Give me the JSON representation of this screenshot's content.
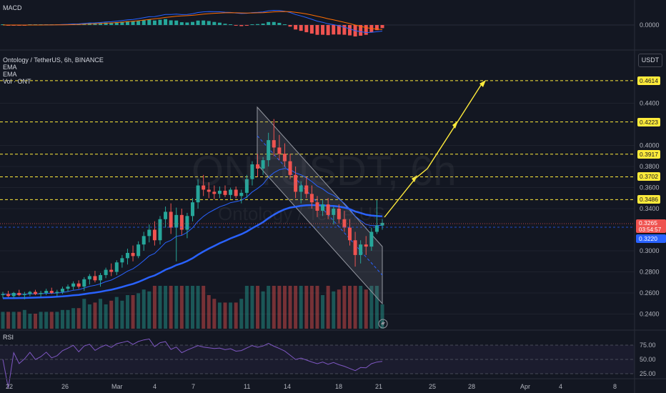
{
  "macd_pane": {
    "title": "MACD",
    "zero_label": "0.0000"
  },
  "legend": {
    "symbol_line": "Ontology / TetherUS, 6h, BINANCE",
    "ema1": "EMA",
    "ema2": "EMA",
    "volume": "Vol · ONT"
  },
  "unit_label": "USDT",
  "watermark": {
    "ticker": "ONTUSDT, 6h",
    "name": "Ontology / TetherUS"
  },
  "rsi_pane": {
    "title": "RSI",
    "levels": [
      "75.00",
      "50.00",
      "25.00"
    ]
  },
  "price_badges": {
    "last": "0.3265",
    "countdown": "03:54:57",
    "ema_value": "0.3220"
  },
  "colors": {
    "up": "#26a69a",
    "down": "#ef5350",
    "ema_fast": "#2962ff",
    "ema_slow": "#2962ff",
    "level": "#ffeb3b",
    "rsi": "#7e57c2",
    "macd": "#2962ff",
    "signal": "#ff6d00"
  },
  "chart_data": {
    "type": "candlestick",
    "symbol": "ONTUSDT",
    "interval": "6h",
    "exchange": "BINANCE",
    "y_ticks": [
      "0.4400",
      "0.4000",
      "0.3800",
      "0.3600",
      "0.3400",
      "0.3000",
      "0.2800",
      "0.2600",
      "0.2400"
    ],
    "x_ticks": [
      "22",
      "26",
      "Mar",
      "4",
      "7",
      "11",
      "14",
      "18",
      "21",
      "25",
      "28",
      "Apr",
      "4",
      "8"
    ],
    "horizontal_levels": [
      {
        "price": 0.4614,
        "label": "0.4614"
      },
      {
        "price": 0.4223,
        "label": "0.4223"
      },
      {
        "price": 0.3917,
        "label": "0.3917"
      },
      {
        "price": 0.3702,
        "label": "0.3702"
      },
      {
        "price": 0.3486,
        "label": "0.3486"
      }
    ],
    "last_price": 0.3265,
    "ema_value": 0.322,
    "candles": [
      {
        "o": 0.258,
        "h": 0.261,
        "l": 0.255,
        "c": 0.259
      },
      {
        "o": 0.259,
        "h": 0.262,
        "l": 0.256,
        "c": 0.257
      },
      {
        "o": 0.257,
        "h": 0.261,
        "l": 0.255,
        "c": 0.26
      },
      {
        "o": 0.26,
        "h": 0.263,
        "l": 0.257,
        "c": 0.258
      },
      {
        "o": 0.258,
        "h": 0.261,
        "l": 0.254,
        "c": 0.259
      },
      {
        "o": 0.259,
        "h": 0.262,
        "l": 0.257,
        "c": 0.261
      },
      {
        "o": 0.261,
        "h": 0.263,
        "l": 0.258,
        "c": 0.259
      },
      {
        "o": 0.259,
        "h": 0.262,
        "l": 0.256,
        "c": 0.26
      },
      {
        "o": 0.26,
        "h": 0.264,
        "l": 0.258,
        "c": 0.262
      },
      {
        "o": 0.262,
        "h": 0.265,
        "l": 0.259,
        "c": 0.26
      },
      {
        "o": 0.26,
        "h": 0.263,
        "l": 0.257,
        "c": 0.261
      },
      {
        "o": 0.261,
        "h": 0.266,
        "l": 0.259,
        "c": 0.264
      },
      {
        "o": 0.264,
        "h": 0.268,
        "l": 0.261,
        "c": 0.266
      },
      {
        "o": 0.266,
        "h": 0.271,
        "l": 0.263,
        "c": 0.269
      },
      {
        "o": 0.269,
        "h": 0.272,
        "l": 0.264,
        "c": 0.266
      },
      {
        "o": 0.266,
        "h": 0.275,
        "l": 0.262,
        "c": 0.273
      },
      {
        "o": 0.273,
        "h": 0.278,
        "l": 0.268,
        "c": 0.276
      },
      {
        "o": 0.276,
        "h": 0.281,
        "l": 0.27,
        "c": 0.272
      },
      {
        "o": 0.272,
        "h": 0.279,
        "l": 0.266,
        "c": 0.277
      },
      {
        "o": 0.277,
        "h": 0.284,
        "l": 0.274,
        "c": 0.282
      },
      {
        "o": 0.282,
        "h": 0.288,
        "l": 0.276,
        "c": 0.28
      },
      {
        "o": 0.28,
        "h": 0.291,
        "l": 0.277,
        "c": 0.289
      },
      {
        "o": 0.289,
        "h": 0.296,
        "l": 0.284,
        "c": 0.293
      },
      {
        "o": 0.293,
        "h": 0.302,
        "l": 0.287,
        "c": 0.298
      },
      {
        "o": 0.298,
        "h": 0.305,
        "l": 0.29,
        "c": 0.295
      },
      {
        "o": 0.295,
        "h": 0.309,
        "l": 0.293,
        "c": 0.306
      },
      {
        "o": 0.306,
        "h": 0.318,
        "l": 0.3,
        "c": 0.314
      },
      {
        "o": 0.314,
        "h": 0.325,
        "l": 0.308,
        "c": 0.32
      },
      {
        "o": 0.32,
        "h": 0.328,
        "l": 0.305,
        "c": 0.31
      },
      {
        "o": 0.31,
        "h": 0.333,
        "l": 0.306,
        "c": 0.33
      },
      {
        "o": 0.33,
        "h": 0.342,
        "l": 0.322,
        "c": 0.337
      },
      {
        "o": 0.337,
        "h": 0.345,
        "l": 0.316,
        "c": 0.322
      },
      {
        "o": 0.322,
        "h": 0.341,
        "l": 0.29,
        "c": 0.334
      },
      {
        "o": 0.334,
        "h": 0.34,
        "l": 0.315,
        "c": 0.32
      },
      {
        "o": 0.32,
        "h": 0.336,
        "l": 0.312,
        "c": 0.333
      },
      {
        "o": 0.333,
        "h": 0.35,
        "l": 0.328,
        "c": 0.346
      },
      {
        "o": 0.346,
        "h": 0.368,
        "l": 0.34,
        "c": 0.362
      },
      {
        "o": 0.362,
        "h": 0.372,
        "l": 0.352,
        "c": 0.358
      },
      {
        "o": 0.358,
        "h": 0.365,
        "l": 0.35,
        "c": 0.356
      },
      {
        "o": 0.356,
        "h": 0.362,
        "l": 0.349,
        "c": 0.354
      },
      {
        "o": 0.354,
        "h": 0.361,
        "l": 0.35,
        "c": 0.357
      },
      {
        "o": 0.357,
        "h": 0.362,
        "l": 0.351,
        "c": 0.353
      },
      {
        "o": 0.353,
        "h": 0.36,
        "l": 0.349,
        "c": 0.358
      },
      {
        "o": 0.358,
        "h": 0.361,
        "l": 0.35,
        "c": 0.352
      },
      {
        "o": 0.352,
        "h": 0.358,
        "l": 0.345,
        "c": 0.355
      },
      {
        "o": 0.355,
        "h": 0.372,
        "l": 0.35,
        "c": 0.368
      },
      {
        "o": 0.368,
        "h": 0.385,
        "l": 0.362,
        "c": 0.382
      },
      {
        "o": 0.382,
        "h": 0.392,
        "l": 0.37,
        "c": 0.378
      },
      {
        "o": 0.378,
        "h": 0.389,
        "l": 0.372,
        "c": 0.386
      },
      {
        "o": 0.386,
        "h": 0.412,
        "l": 0.38,
        "c": 0.405
      },
      {
        "o": 0.405,
        "h": 0.425,
        "l": 0.39,
        "c": 0.398
      },
      {
        "o": 0.398,
        "h": 0.41,
        "l": 0.386,
        "c": 0.392
      },
      {
        "o": 0.392,
        "h": 0.402,
        "l": 0.38,
        "c": 0.385
      },
      {
        "o": 0.385,
        "h": 0.392,
        "l": 0.368,
        "c": 0.372
      },
      {
        "o": 0.372,
        "h": 0.38,
        "l": 0.35,
        "c": 0.356
      },
      {
        "o": 0.356,
        "h": 0.366,
        "l": 0.345,
        "c": 0.362
      },
      {
        "o": 0.362,
        "h": 0.37,
        "l": 0.35,
        "c": 0.354
      },
      {
        "o": 0.354,
        "h": 0.362,
        "l": 0.34,
        "c": 0.346
      },
      {
        "o": 0.346,
        "h": 0.352,
        "l": 0.332,
        "c": 0.338
      },
      {
        "o": 0.338,
        "h": 0.348,
        "l": 0.333,
        "c": 0.344
      },
      {
        "o": 0.344,
        "h": 0.35,
        "l": 0.33,
        "c": 0.334
      },
      {
        "o": 0.334,
        "h": 0.342,
        "l": 0.325,
        "c": 0.34
      },
      {
        "o": 0.34,
        "h": 0.344,
        "l": 0.326,
        "c": 0.33
      },
      {
        "o": 0.33,
        "h": 0.338,
        "l": 0.318,
        "c": 0.322
      },
      {
        "o": 0.322,
        "h": 0.33,
        "l": 0.305,
        "c": 0.31
      },
      {
        "o": 0.31,
        "h": 0.318,
        "l": 0.285,
        "c": 0.296
      },
      {
        "o": 0.296,
        "h": 0.31,
        "l": 0.288,
        "c": 0.306
      },
      {
        "o": 0.306,
        "h": 0.314,
        "l": 0.296,
        "c": 0.304
      },
      {
        "o": 0.304,
        "h": 0.322,
        "l": 0.3,
        "c": 0.318
      },
      {
        "o": 0.318,
        "h": 0.348,
        "l": 0.316,
        "c": 0.324
      },
      {
        "o": 0.324,
        "h": 0.33,
        "l": 0.32,
        "c": 0.3265
      }
    ],
    "annotations": {
      "descending_channel": true,
      "projection_arrow_to": 0.4614
    },
    "rsi_levels": [
      75,
      50,
      25
    ]
  }
}
